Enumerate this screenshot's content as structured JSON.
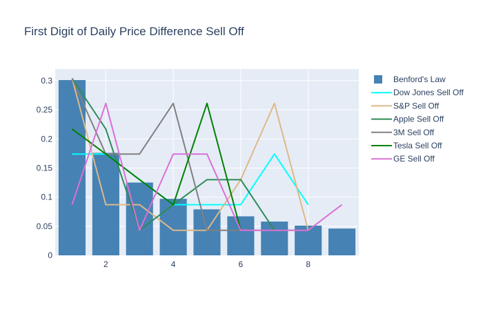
{
  "chart_data": {
    "type": "bar",
    "title": "First Digit of Daily Price Difference Sell Off",
    "xlabel": "",
    "ylabel": "",
    "xlim": [
      0.5,
      9.5
    ],
    "ylim": [
      0,
      0.32
    ],
    "xticks": [
      2,
      4,
      6,
      8
    ],
    "xtick_labels": [
      "2",
      "4",
      "6",
      "8"
    ],
    "yticks": [
      0,
      0.05,
      0.1,
      0.15,
      0.2,
      0.25,
      0.3
    ],
    "ytick_labels": [
      "0",
      "0.05",
      "0.1",
      "0.15",
      "0.2",
      "0.25",
      "0.3"
    ],
    "grid": true,
    "legend_position": "right",
    "background_color": "#e5ecf6",
    "x": [
      1,
      2,
      3,
      4,
      5,
      6,
      7,
      8,
      9
    ],
    "series": [
      {
        "name": "Benford's Law",
        "kind": "bar",
        "color": "#4682b4",
        "x": [
          1,
          2,
          3,
          4,
          5,
          6,
          7,
          8,
          9
        ],
        "values": [
          0.301,
          0.176,
          0.125,
          0.097,
          0.079,
          0.067,
          0.058,
          0.051,
          0.046
        ]
      },
      {
        "name": "Dow Jones Sell Off",
        "kind": "line",
        "color": "#00ffff",
        "x": [
          1,
          2,
          3,
          4,
          5,
          6,
          7,
          8
        ],
        "values": [
          0.174,
          0.174,
          0.13,
          0.087,
          0.087,
          0.087,
          0.174,
          0.087
        ]
      },
      {
        "name": "S&P Sell Off",
        "kind": "line",
        "color": "#deb887",
        "x": [
          1,
          2,
          3,
          4,
          5,
          6,
          7,
          8
        ],
        "values": [
          0.304,
          0.087,
          0.087,
          0.043,
          0.043,
          0.13,
          0.261,
          0.043
        ]
      },
      {
        "name": "Apple Sell Off",
        "kind": "line",
        "color": "#2e8b57",
        "x": [
          1,
          2,
          3,
          4,
          5,
          6,
          7
        ],
        "values": [
          0.304,
          0.217,
          0.043,
          0.087,
          0.13,
          0.13,
          0.043
        ]
      },
      {
        "name": "3M Sell Off",
        "kind": "line",
        "color": "#808080",
        "x": [
          1,
          2,
          3,
          4,
          5,
          6,
          7,
          8
        ],
        "values": [
          0.304,
          0.174,
          0.174,
          0.261,
          0.043,
          0.043,
          0.043,
          0.043
        ]
      },
      {
        "name": "Tesla Sell Off",
        "kind": "line",
        "color": "#008000",
        "x": [
          1,
          2,
          3,
          4,
          5,
          6
        ],
        "values": [
          0.217,
          0.174,
          0.13,
          0.087,
          0.261,
          0.043
        ]
      },
      {
        "name": "GE Sell Off",
        "kind": "line",
        "color": "#da70d6",
        "x": [
          1,
          2,
          3,
          4,
          5,
          6,
          7,
          8,
          9
        ],
        "values": [
          0.087,
          0.261,
          0.043,
          0.174,
          0.174,
          0.043,
          0.043,
          0.043,
          0.087
        ]
      }
    ]
  }
}
